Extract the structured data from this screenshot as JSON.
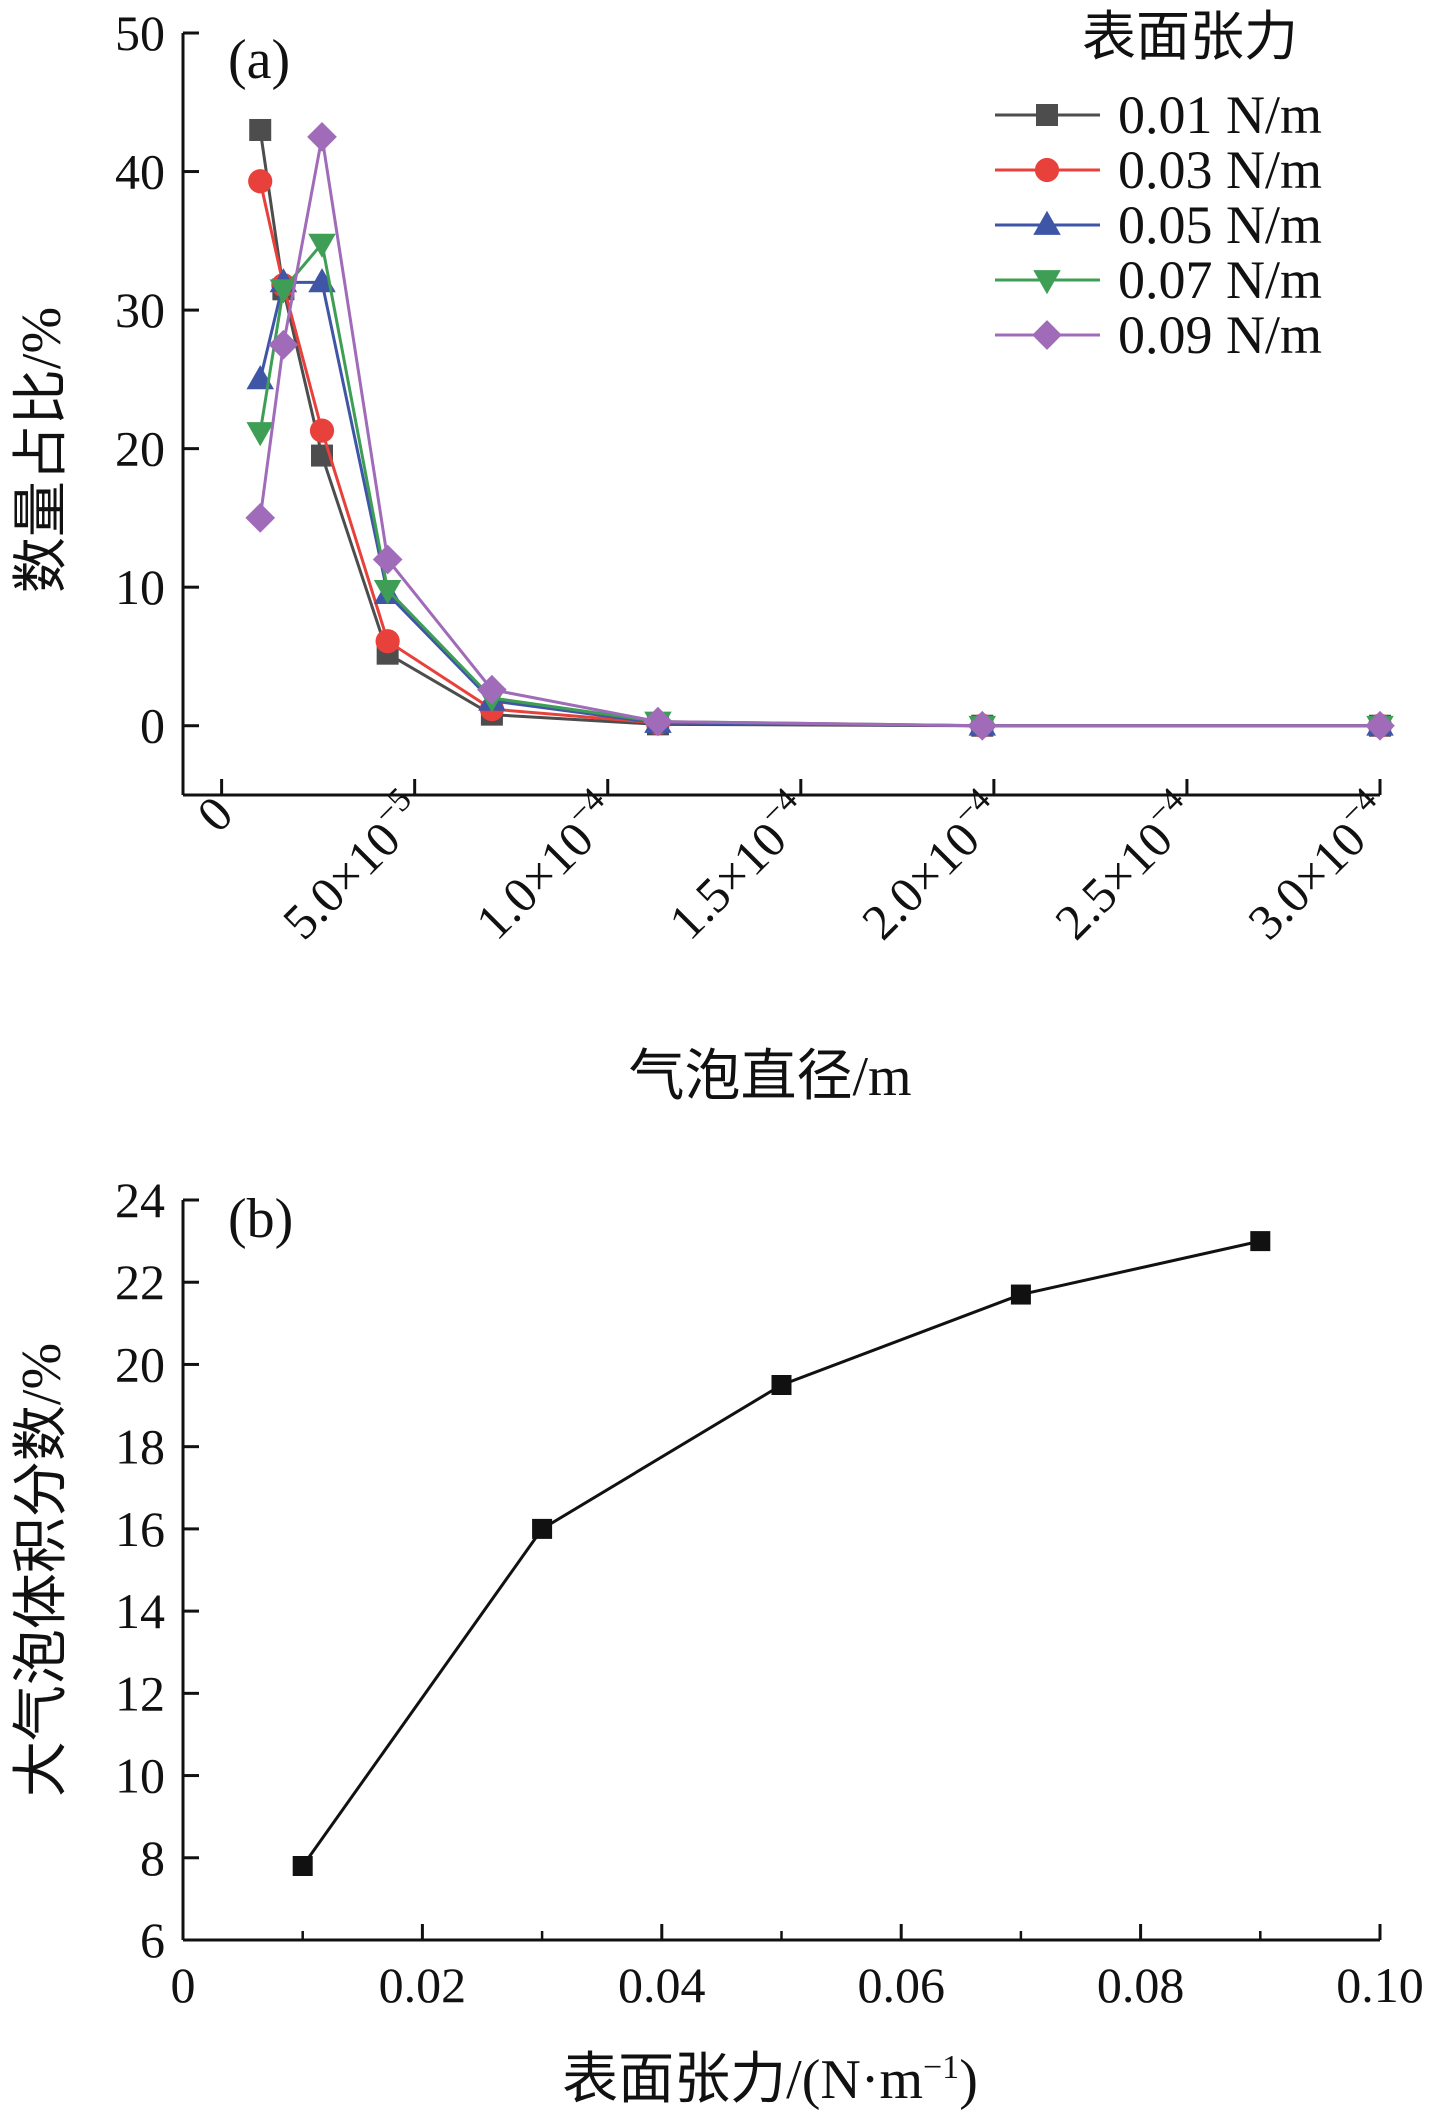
{
  "chart_data": [
    {
      "type": "line",
      "panel_label": "(a)",
      "xlabel": "气泡直径/m",
      "ylabel": "数量占比/%",
      "xlim": [
        -1e-05,
        0.0003
      ],
      "ylim": [
        -5,
        50
      ],
      "x_ticks": [
        0,
        5e-05,
        0.0001,
        0.00015,
        0.0002,
        0.00025,
        0.0003
      ],
      "x_tick_labels": [
        {
          "base": "0",
          "exp": ""
        },
        {
          "base": "5.0×10",
          "exp": "−5"
        },
        {
          "base": "1.0×10",
          "exp": "−4"
        },
        {
          "base": "1.5×10",
          "exp": "−4"
        },
        {
          "base": "2.0×10",
          "exp": "−4"
        },
        {
          "base": "2.5×10",
          "exp": "−4"
        },
        {
          "base": "3.0×10",
          "exp": "−4"
        }
      ],
      "y_ticks": [
        0,
        10,
        20,
        30,
        40,
        50
      ],
      "y_tick_labels": [
        "0",
        "10",
        "20",
        "30",
        "40",
        "50"
      ],
      "legend_title": "表面张力",
      "legend_position": "top-right",
      "grid": false,
      "series": [
        {
          "name": "0.01 N/m",
          "color": "#4d4d4d",
          "marker": "square",
          "x": [
            1e-05,
            1.6e-05,
            2.6e-05,
            4.3e-05,
            7e-05,
            0.000113,
            0.000197,
            0.0003
          ],
          "y": [
            43,
            31.5,
            19.5,
            5.2,
            0.8,
            0.1,
            0.0,
            0.0
          ]
        },
        {
          "name": "0.03 N/m",
          "color": "#e8413c",
          "marker": "circle",
          "x": [
            1e-05,
            1.6e-05,
            2.6e-05,
            4.3e-05,
            7e-05,
            0.000113,
            0.000197,
            0.0003
          ],
          "y": [
            39.3,
            31.8,
            21.3,
            6.1,
            1.2,
            0.2,
            0.0,
            0.0
          ]
        },
        {
          "name": "0.05 N/m",
          "color": "#3f56a6",
          "marker": "triangle-up",
          "x": [
            1e-05,
            1.6e-05,
            2.6e-05,
            4.3e-05,
            7e-05,
            0.000113,
            0.000197,
            0.0003
          ],
          "y": [
            25,
            32,
            32,
            9.5,
            1.8,
            0.2,
            0.0,
            0.0
          ]
        },
        {
          "name": "0.07 N/m",
          "color": "#3f9e56",
          "marker": "triangle-down",
          "x": [
            1e-05,
            1.6e-05,
            2.6e-05,
            4.3e-05,
            7e-05,
            0.000113,
            0.000197,
            0.0003
          ],
          "y": [
            21.2,
            31.5,
            34.8,
            9.8,
            2.0,
            0.3,
            0.0,
            0.0
          ]
        },
        {
          "name": "0.09 N/m",
          "color": "#a06bb8",
          "marker": "diamond",
          "x": [
            1e-05,
            1.6e-05,
            2.6e-05,
            4.3e-05,
            7e-05,
            0.000113,
            0.000197,
            0.0003
          ],
          "y": [
            15,
            27.5,
            42.5,
            12,
            2.6,
            0.3,
            0.0,
            0.0
          ]
        }
      ]
    },
    {
      "type": "line",
      "panel_label": "(b)",
      "xlabel": "表面张力/(N·m",
      "xlabel_exp": "−1",
      "xlabel_close": ")",
      "ylabel": "大气泡体积分数/%",
      "xlim": [
        0,
        0.1
      ],
      "ylim": [
        6,
        24
      ],
      "x_ticks": [
        0,
        0.02,
        0.04,
        0.06,
        0.08,
        0.1
      ],
      "x_tick_labels": [
        "0",
        "0.02",
        "0.04",
        "0.06",
        "0.08",
        "0.10"
      ],
      "y_ticks": [
        6,
        8,
        10,
        12,
        14,
        16,
        18,
        20,
        22,
        24
      ],
      "y_tick_labels": [
        "6",
        "8",
        "10",
        "12",
        "14",
        "16",
        "18",
        "20",
        "22",
        "24"
      ],
      "grid": false,
      "series": [
        {
          "color": "#111111",
          "marker": "square",
          "x": [
            0.01,
            0.03,
            0.05,
            0.07,
            0.09
          ],
          "y": [
            7.8,
            16.0,
            19.5,
            21.7,
            23.0
          ]
        }
      ]
    }
  ]
}
